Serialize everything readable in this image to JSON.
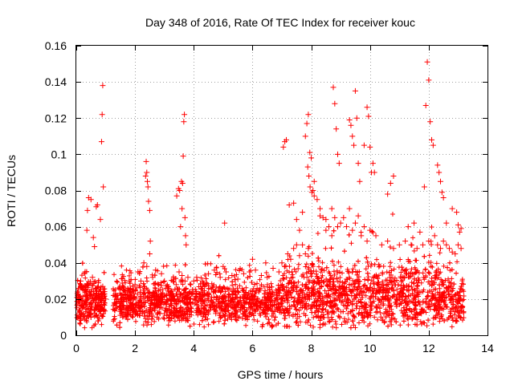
{
  "chart_data": {
    "type": "scatter",
    "title": "Day 348 of 2016, Rate Of TEC Index for receiver kouc",
    "xlabel": "GPS time / hours",
    "ylabel": "ROTI / TECUs",
    "xlim": [
      0,
      14
    ],
    "ylim": [
      0,
      0.16
    ],
    "xticks": [
      0,
      2,
      4,
      6,
      8,
      10,
      12,
      14
    ],
    "xtick_labels": [
      "0",
      "2",
      "4",
      "6",
      "8",
      "10",
      "12",
      "14"
    ],
    "yticks": [
      0,
      0.02,
      0.04,
      0.06,
      0.08,
      0.1,
      0.12,
      0.14,
      0.16
    ],
    "ytick_labels": [
      "0",
      "0.02",
      "0.04",
      "0.06",
      "0.08",
      "0.1",
      "0.12",
      "0.14",
      "0.16"
    ],
    "grid": true,
    "marker": "+",
    "color": "#ff0000",
    "series": [
      {
        "name": "ROTI",
        "x": [
          0.05,
          0.1,
          0.15,
          0.2,
          0.25,
          0.3,
          0.35,
          0.4,
          0.45,
          0.5,
          0.55,
          0.6,
          0.65,
          0.7,
          0.75,
          0.8,
          0.85,
          0.9,
          0.95,
          1.0,
          0.36,
          0.38,
          0.42,
          0.5,
          0.58,
          0.62,
          0.68,
          0.72,
          0.82,
          0.86,
          0.88,
          0.9,
          0.92,
          1.3,
          1.4,
          1.5,
          1.6,
          1.7,
          1.8,
          1.9,
          2.0,
          2.1,
          2.2,
          2.3,
          2.4,
          2.5,
          2.6,
          2.7,
          2.8,
          2.9,
          3.0,
          2.38,
          2.4,
          2.42,
          2.44,
          2.46,
          2.5,
          2.52,
          2.36,
          3.1,
          3.2,
          3.3,
          3.4,
          3.5,
          3.6,
          3.7,
          3.8,
          3.9,
          4.0,
          3.42,
          3.48,
          3.52,
          3.58,
          3.62,
          3.64,
          3.66,
          3.68,
          3.7,
          3.72,
          3.74,
          3.6,
          3.55,
          4.1,
          4.3,
          4.5,
          4.7,
          4.9,
          5.0,
          5.1,
          5.3,
          5.5,
          5.7,
          5.9,
          6.1,
          6.3,
          6.5,
          6.7,
          6.9,
          5.05,
          6.0,
          6.45,
          7.0,
          7.1,
          7.2,
          7.3,
          7.4,
          7.5,
          7.6,
          7.7,
          7.8,
          7.9,
          7.05,
          7.1,
          7.15,
          7.25,
          7.4,
          7.5,
          7.6,
          7.7,
          7.8,
          7.85,
          7.9,
          7.95,
          8.0,
          8.1,
          8.2,
          8.3,
          8.4,
          8.5,
          8.6,
          8.7,
          8.8,
          8.9,
          9.0,
          7.88,
          7.92,
          7.96,
          8.02,
          8.06,
          8.1,
          8.3,
          8.5,
          8.7,
          8.75,
          8.8,
          8.85,
          8.9,
          8.95,
          9.1,
          9.2,
          9.3,
          9.4,
          9.5,
          9.6,
          9.7,
          9.8,
          9.9,
          10.0,
          9.3,
          9.35,
          9.4,
          9.45,
          9.5,
          9.55,
          9.6,
          9.65,
          9.8,
          9.9,
          9.95,
          10.0,
          10.05,
          10.1,
          10.15,
          10.2,
          10.4,
          10.6,
          10.8,
          11.0,
          11.2,
          11.4,
          11.6,
          11.8,
          12.0,
          10.6,
          10.7,
          10.8,
          11.3,
          11.5,
          11.7,
          11.85,
          11.9,
          11.95,
          12.0,
          12.05,
          12.1,
          12.15,
          12.2,
          12.3,
          12.4,
          12.5,
          12.6,
          12.7,
          12.8,
          12.9,
          13.0,
          13.1,
          12.3,
          12.35,
          12.4,
          12.45,
          12.5,
          12.6,
          12.8,
          12.95,
          13.0,
          13.05,
          13.1,
          0.25,
          0.5,
          0.75,
          1.5,
          1.75,
          2.25,
          2.75,
          3.25,
          3.75,
          4.25,
          4.75,
          5.25,
          5.75,
          6.25,
          6.75,
          7.25,
          7.75,
          8.25,
          8.75,
          9.25,
          9.75,
          10.25,
          10.75,
          11.25,
          11.75,
          12.25,
          12.75,
          13.05
        ],
        "y": [
          0.022,
          0.018,
          0.03,
          0.015,
          0.025,
          0.035,
          0.02,
          0.028,
          0.017,
          0.024,
          0.032,
          0.019,
          0.026,
          0.021,
          0.029,
          0.016,
          0.023,
          0.027,
          0.018,
          0.02,
          0.058,
          0.069,
          0.076,
          0.075,
          0.054,
          0.049,
          0.071,
          0.072,
          0.064,
          0.107,
          0.122,
          0.138,
          0.082,
          0.018,
          0.022,
          0.016,
          0.025,
          0.02,
          0.03,
          0.024,
          0.028,
          0.035,
          0.03,
          0.04,
          0.038,
          0.045,
          0.032,
          0.036,
          0.028,
          0.034,
          0.03,
          0.096,
          0.09,
          0.085,
          0.082,
          0.074,
          0.069,
          0.052,
          0.088,
          0.026,
          0.024,
          0.03,
          0.028,
          0.035,
          0.033,
          0.03,
          0.032,
          0.028,
          0.03,
          0.077,
          0.081,
          0.08,
          0.085,
          0.084,
          0.099,
          0.118,
          0.122,
          0.065,
          0.055,
          0.05,
          0.07,
          0.06,
          0.032,
          0.03,
          0.034,
          0.036,
          0.032,
          0.038,
          0.035,
          0.033,
          0.031,
          0.034,
          0.035,
          0.036,
          0.033,
          0.032,
          0.037,
          0.035,
          0.062,
          0.042,
          0.04,
          0.04,
          0.038,
          0.045,
          0.042,
          0.048,
          0.05,
          0.044,
          0.05,
          0.045,
          0.048,
          0.104,
          0.107,
          0.108,
          0.072,
          0.073,
          0.064,
          0.058,
          0.068,
          0.11,
          0.117,
          0.122,
          0.101,
          0.098,
          0.085,
          0.075,
          0.07,
          0.065,
          0.058,
          0.06,
          0.055,
          0.065,
          0.06,
          0.062,
          0.093,
          0.088,
          0.082,
          0.079,
          0.08,
          0.077,
          0.066,
          0.064,
          0.07,
          0.137,
          0.128,
          0.114,
          0.1,
          0.095,
          0.065,
          0.06,
          0.07,
          0.058,
          0.062,
          0.066,
          0.055,
          0.06,
          0.052,
          0.058,
          0.119,
          0.116,
          0.11,
          0.105,
          0.135,
          0.12,
          0.095,
          0.085,
          0.105,
          0.126,
          0.121,
          0.104,
          0.09,
          0.095,
          0.09,
          0.055,
          0.05,
          0.052,
          0.048,
          0.05,
          0.052,
          0.05,
          0.048,
          0.05,
          0.052,
          0.078,
          0.084,
          0.088,
          0.06,
          0.062,
          0.057,
          0.082,
          0.127,
          0.151,
          0.141,
          0.118,
          0.108,
          0.105,
          0.055,
          0.05,
          0.048,
          0.052,
          0.05,
          0.048,
          0.046,
          0.045,
          0.05,
          0.048,
          0.094,
          0.09,
          0.085,
          0.079,
          0.076,
          0.062,
          0.07,
          0.068,
          0.061,
          0.057,
          0.059,
          0.012,
          0.01,
          0.008,
          0.011,
          0.009,
          0.012,
          0.01,
          0.011,
          0.009,
          0.013,
          0.012,
          0.01,
          0.011,
          0.012,
          0.013,
          0.011,
          0.012,
          0.01,
          0.013,
          0.012,
          0.011,
          0.013,
          0.012,
          0.014,
          0.012,
          0.011,
          0.013,
          0.012
        ]
      }
    ]
  }
}
